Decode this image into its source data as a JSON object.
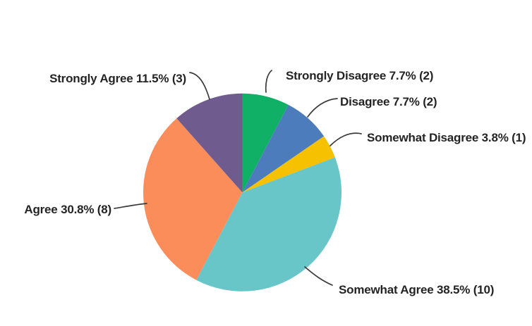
{
  "page": {
    "background": "#ffffff",
    "label_text_color": "#242424",
    "leader_line_color": "#3b3b3b"
  },
  "chart_data": {
    "type": "pie",
    "title": "",
    "legend": "none",
    "start_angle_deg": 0,
    "direction": "clockwise",
    "total_responses": 26,
    "slices": [
      {
        "category": "Strongly Disagree",
        "value": 2,
        "percent": 7.7,
        "label": "Strongly Disagree 7.7% (2)",
        "color": "#10b067"
      },
      {
        "category": "Disagree",
        "value": 2,
        "percent": 7.7,
        "label": "Disagree 7.7% (2)",
        "color": "#4d7cbd"
      },
      {
        "category": "Somewhat Disagree",
        "value": 1,
        "percent": 3.8,
        "label": "Somewhat Disagree 3.8% (1)",
        "color": "#f5c100"
      },
      {
        "category": "Somewhat Agree",
        "value": 10,
        "percent": 38.5,
        "label": "Somewhat Agree 38.5% (10)",
        "color": "#68c6c8"
      },
      {
        "category": "Agree",
        "value": 8,
        "percent": 30.8,
        "label": "Agree 30.8% (8)",
        "color": "#fb8d5a"
      },
      {
        "category": "Strongly Agree",
        "value": 3,
        "percent": 11.5,
        "label": "Strongly Agree 11.5% (3)",
        "color": "#6f5b8d"
      }
    ]
  }
}
